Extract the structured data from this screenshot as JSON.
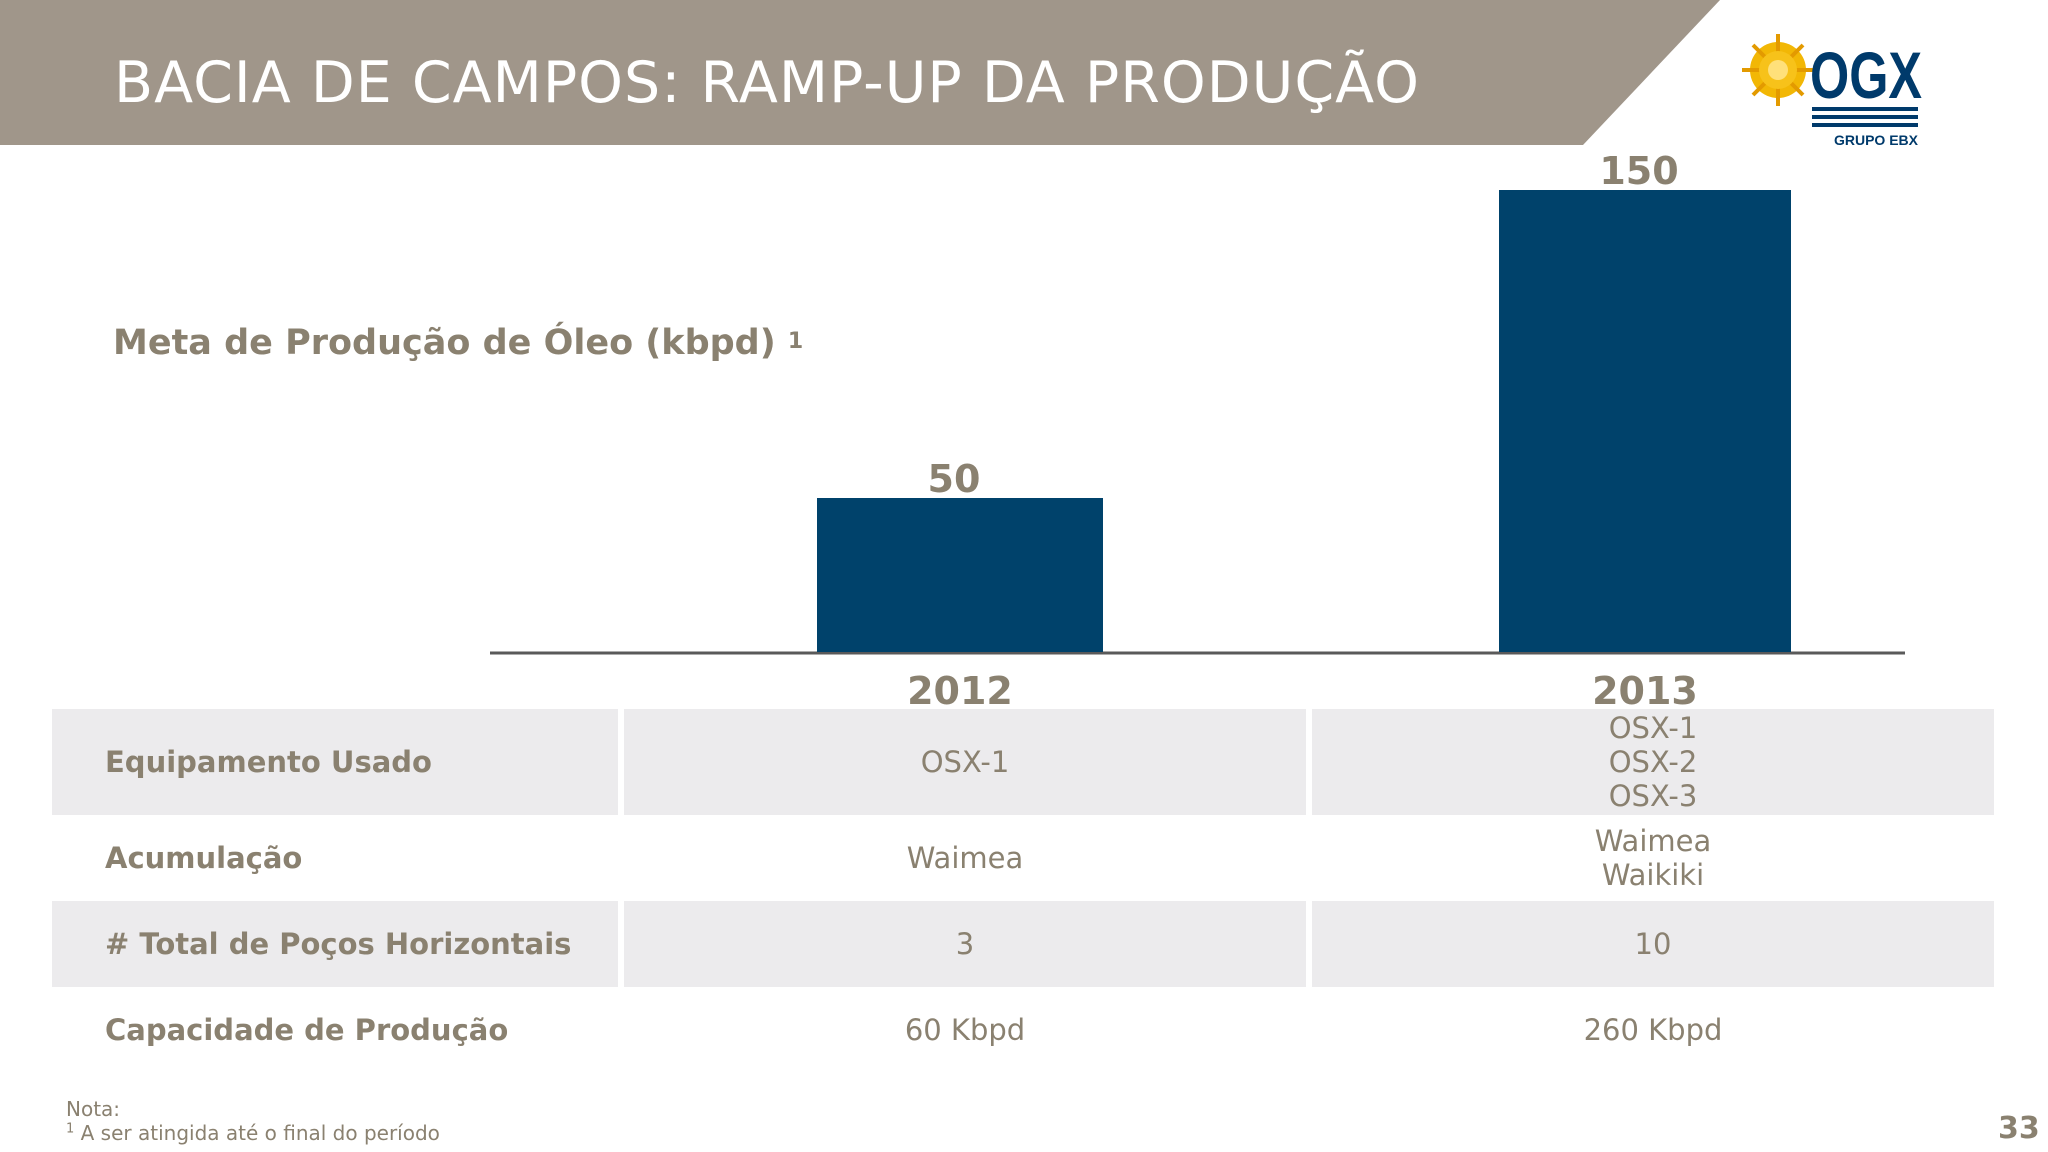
{
  "header": {
    "title": "BACIA DE CAMPOS: RAMP-UP DA PRODUÇÃO"
  },
  "logo": {
    "brand": "OGX",
    "subtitle": "GRUPO EBX",
    "icon": "sun-icon"
  },
  "chart_data": {
    "type": "bar",
    "title": "Meta de Produção de Óleo (kbpd)",
    "title_superscript": "1",
    "categories": [
      "2012",
      "2013"
    ],
    "values": [
      50,
      150
    ],
    "ylim": [
      0,
      150
    ],
    "bar_color": "#00426b",
    "grid": false
  },
  "table": {
    "rows": [
      {
        "label": "Equipamento Usado",
        "values": [
          [
            "OSX-1"
          ],
          [
            "OSX-1",
            "OSX-2",
            "OSX-3"
          ]
        ]
      },
      {
        "label": "Acumulação",
        "values": [
          [
            "Waimea"
          ],
          [
            "Waimea",
            "Waikiki"
          ]
        ]
      },
      {
        "label": "# Total de Poços Horizontais",
        "values": [
          [
            "3"
          ],
          [
            "10"
          ]
        ]
      },
      {
        "label": "Capacidade de Produção",
        "values": [
          [
            "60 Kbpd"
          ],
          [
            "260 Kbpd"
          ]
        ]
      }
    ]
  },
  "footnote": {
    "heading": "Nota:",
    "marker": "1",
    "text": "A ser atingida até o final do período"
  },
  "page_number": "33",
  "colors": {
    "header": "#a0968a",
    "text": "#8a8170",
    "row_shade": "#ecebed",
    "bar": "#00426b"
  }
}
